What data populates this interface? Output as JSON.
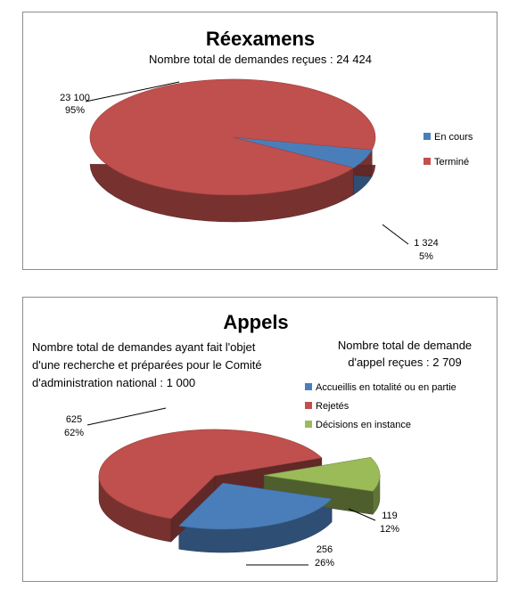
{
  "chart_data": [
    {
      "type": "pie",
      "title": "Réexamens",
      "subtitle": "Nombre total de demandes reçues : 24 424",
      "legend_position": "right",
      "labels": [
        "En cours",
        "Terminé"
      ],
      "values": [
        1324,
        23100
      ],
      "percents": [
        "5%",
        "95%"
      ],
      "value_labels": [
        "1 324",
        "23 100"
      ],
      "colors": [
        "#4a7ebb",
        "#c0504d"
      ]
    },
    {
      "type": "pie",
      "title": "Appels",
      "note_left": [
        "Nombre total de demandes ayant fait l'objet",
        "d'une recherche et préparées pour le Comité",
        "d'administration national : 1 000"
      ],
      "note_right": [
        "Nombre total de demande",
        "d'appel reçues : 2 709"
      ],
      "legend_position": "right",
      "labels": [
        "Accueillis en totalité ou en partie",
        "Rejetés",
        "Décisions en instance"
      ],
      "values": [
        256,
        625,
        119
      ],
      "percents": [
        "26%",
        "62%",
        "12%"
      ],
      "value_labels": [
        "256",
        "625",
        "119"
      ],
      "colors": [
        "#4a7ebb",
        "#c0504d",
        "#9bbb59"
      ]
    }
  ]
}
